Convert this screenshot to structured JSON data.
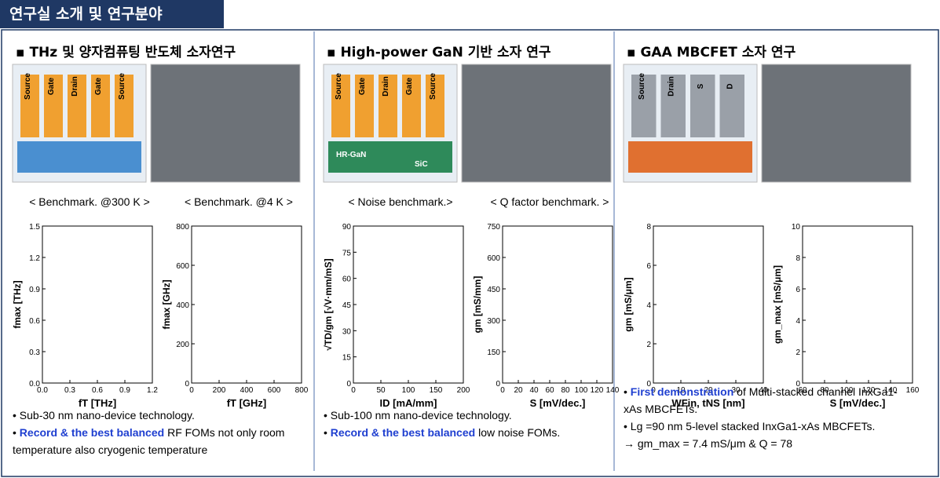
{
  "header": {
    "title": "연구실 소개 및 연구분야"
  },
  "columns": [
    {
      "heading": "THz 및 양자컴퓨팅 반도체 소자연구",
      "image_labels": [
        "Source",
        "Gate",
        "Drain",
        "Gate",
        "Source"
      ],
      "charts": [
        {
          "title": "< Benchmark. @300 K >",
          "x_label": "fT [THz]",
          "y_label": "fmax [THz]",
          "xlim": [
            0,
            1.2
          ],
          "xticks": [
            {
              "value": 0,
              "label": "0.0"
            },
            0.3,
            0.6,
            0.9,
            1.2
          ],
          "ylim": [
            0,
            1.5
          ],
          "yticks": [
            {
              "value": 0,
              "label": "0.0"
            },
            0.3,
            0.6,
            0.9,
            1.2,
            1.5
          ]
        },
        {
          "title": "< Benchmark. @4 K >",
          "x_label": "fT [GHz]",
          "y_label": "fmax [GHz]",
          "xlim": [
            0,
            800
          ],
          "xticks": [
            0,
            200,
            400,
            600,
            800
          ],
          "ylim": [
            0,
            800
          ],
          "yticks": [
            0,
            200,
            400,
            600,
            800
          ]
        }
      ],
      "bullets": [
        [
          {
            "text": "Sub-30 nm nano-device technology."
          }
        ],
        [
          {
            "highlight": "Record & the best balanced"
          },
          {
            "text": " RF FOMs not only room temperature also cryogenic temperature"
          }
        ]
      ]
    },
    {
      "heading": "High-power GaN 기반 소자 연구",
      "image_labels": [
        "Source",
        "Gate",
        "Drain",
        "Gate",
        "Source",
        "HR-GaN",
        "SiC"
      ],
      "charts": [
        {
          "title": "< Noise benchmark.>",
          "x_label": "ID [mA/mm]",
          "y_label": "√TD/gm [√V·mm/mS]",
          "xlim": [
            0,
            200
          ],
          "xticks": [
            0,
            50,
            100,
            150,
            200
          ],
          "ylim": [
            0,
            90
          ],
          "yticks": [
            0,
            15,
            30,
            45,
            60,
            75,
            90
          ]
        },
        {
          "title": "< Q factor benchmark. >",
          "x_label": "S [mV/dec.]",
          "y_label": "gm [mS/mm]",
          "xlim": [
            0,
            140
          ],
          "xticks": [
            0,
            20,
            40,
            60,
            80,
            100,
            120,
            140
          ],
          "ylim": [
            0,
            750
          ],
          "yticks": [
            0,
            150,
            300,
            450,
            600,
            750
          ]
        }
      ],
      "bullets": [
        [
          {
            "text": "Sub-100 nm nano-device technology."
          }
        ],
        [
          {
            "highlight": "Record & the best balanced"
          },
          {
            "text": " low noise FOMs."
          }
        ]
      ]
    },
    {
      "heading": "GAA MBCFET 소자 연구",
      "image_labels": [
        "Source",
        "Drain",
        "S",
        "D"
      ],
      "charts": [
        {
          "title": "",
          "x_label": "WFin, tNS [nm]",
          "y_label": "gm [mS/μm]",
          "xlim": [
            0,
            40
          ],
          "xticks": [
            0,
            10,
            20,
            30,
            40
          ],
          "ylim": [
            0,
            8
          ],
          "yticks": [
            0,
            2,
            4,
            6,
            8
          ]
        },
        {
          "title": "",
          "x_label": "S [mV/dec.]",
          "y_label": "gm_max [mS/μm]",
          "xlim": [
            60,
            160
          ],
          "xticks": [
            60,
            80,
            100,
            120,
            140,
            160
          ],
          "ylim": [
            0,
            10
          ],
          "yticks": [
            0,
            2,
            4,
            6,
            8,
            10
          ]
        }
      ],
      "bullets": [
        [
          {
            "highlight": "First demonstration"
          },
          {
            "text": " of Multi-stacked channel InxGa1-xAs MBCFETs."
          }
        ],
        [
          {
            "text": "Lg =90 nm 5-level stacked InxGa1-xAs MBCFETs."
          }
        ],
        [
          {
            "text": "→ gm_max = 7.4 mS/μm & Q = 78"
          }
        ]
      ]
    }
  ]
}
